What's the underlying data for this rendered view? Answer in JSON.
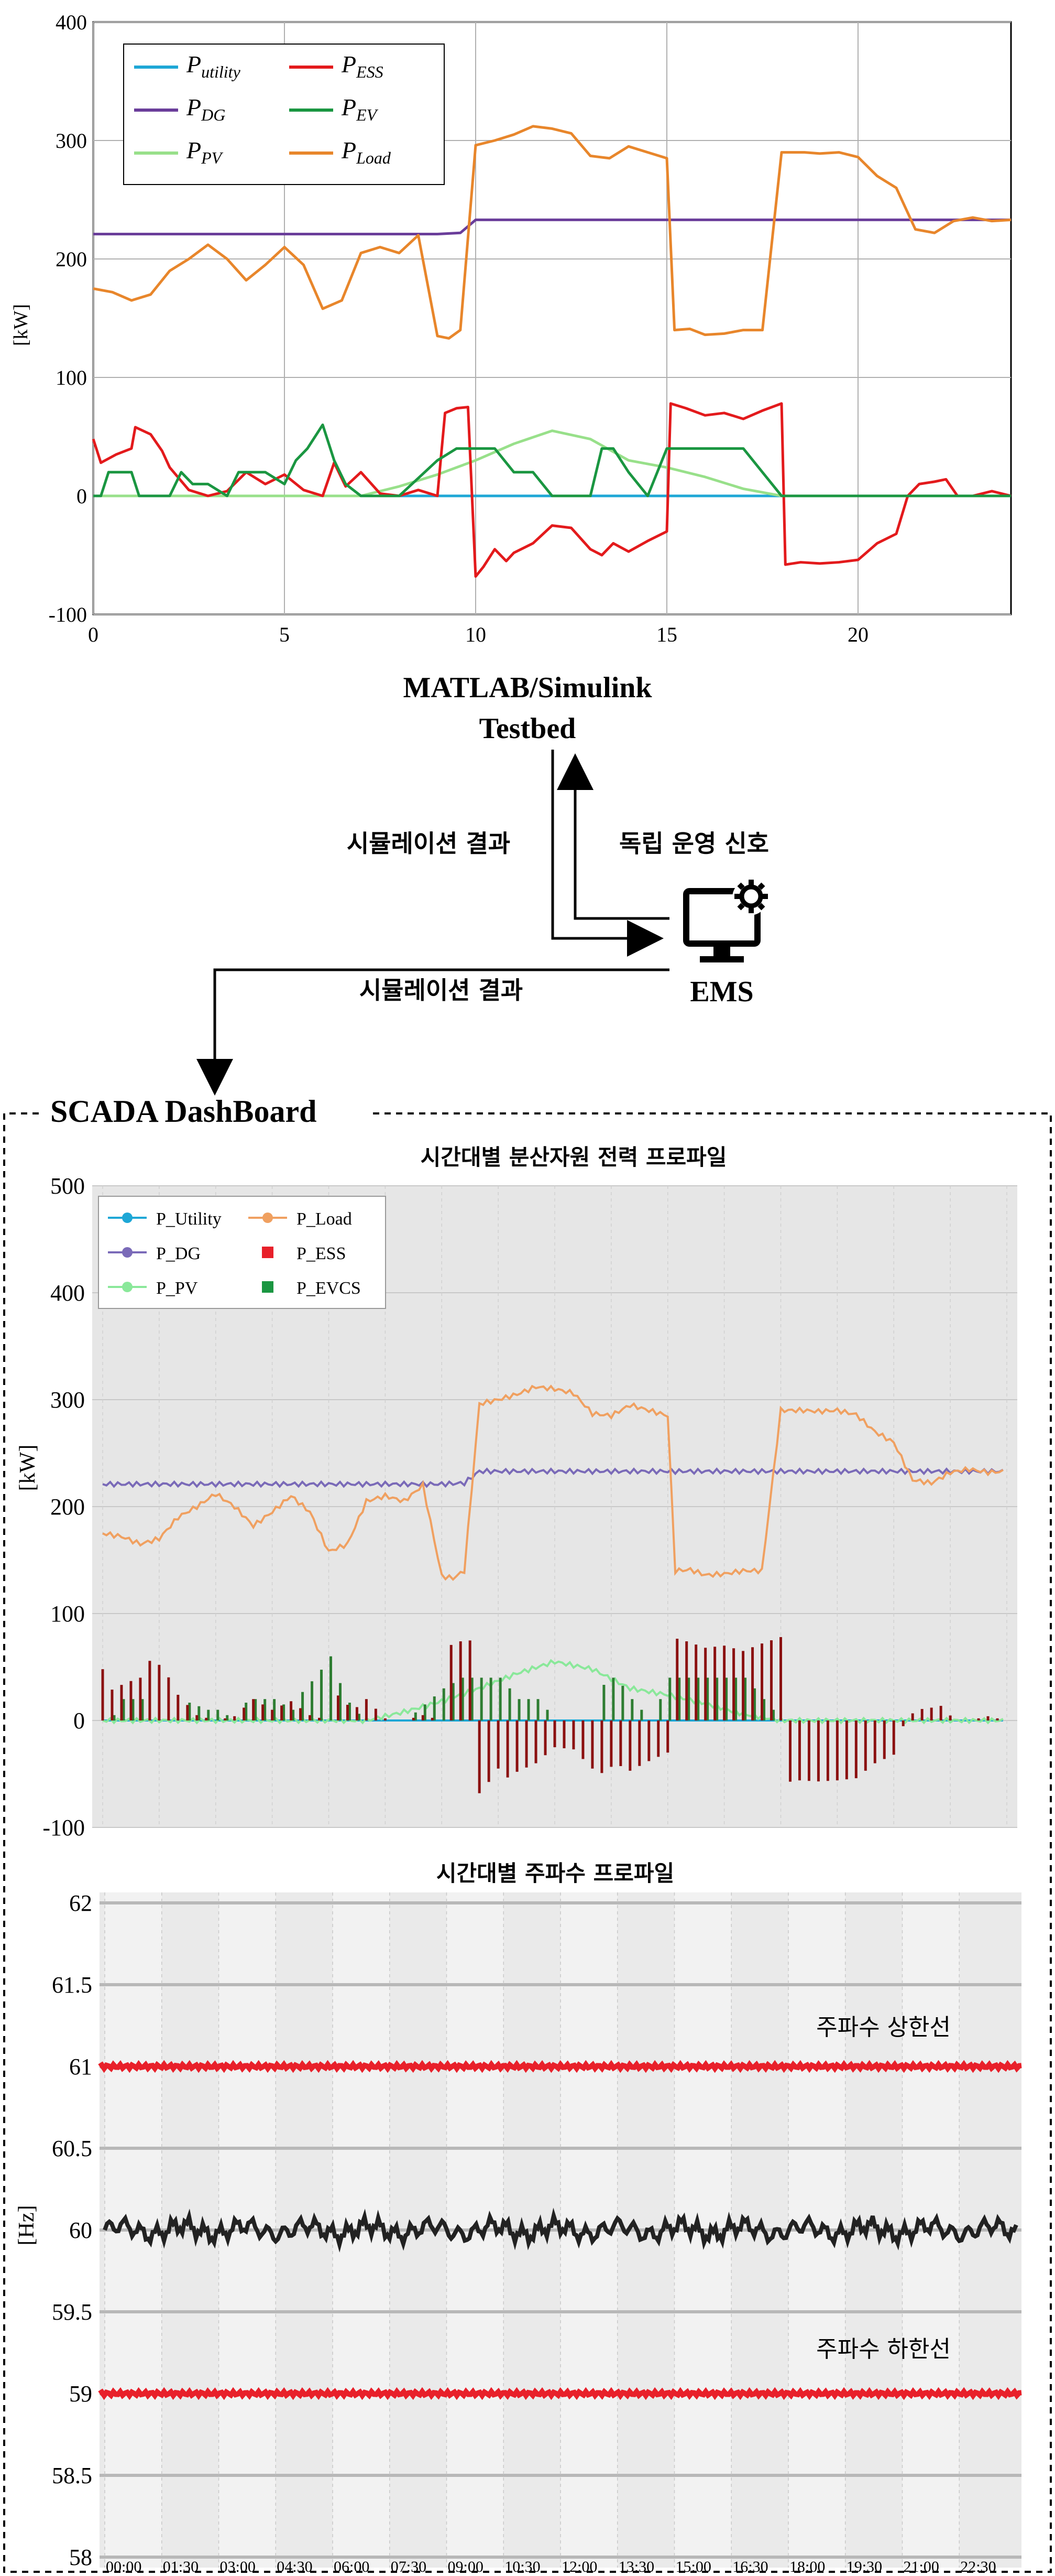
{
  "matlab_section": {
    "label_line1": "MATLAB/Simulink",
    "label_line2": "Testbed"
  },
  "flow": {
    "result_left": "시뮬레이션 결과",
    "signal_right": "독립 운영 신호",
    "ems_label": "EMS",
    "result_bottom": "시뮬레이션 결과"
  },
  "scada": {
    "title": "SCADA DashBoard"
  },
  "colors": {
    "utility": "#1ea7d6",
    "dg": "#6a3d9a",
    "pv": "#98e08a",
    "ess": "#e31a1c",
    "ev": "#1a9641",
    "load": "#e8862b",
    "dash_load": "#f0a060",
    "dash_dg": "#7a6ab8",
    "dash_pv": "#8ae89a",
    "dash_ess": "#8b1010",
    "dash_evcs": "#2e7d32",
    "limit": "#e8202a",
    "freq": "#222222"
  },
  "chart_data": [
    {
      "type": "line",
      "title": "",
      "xlabel": "",
      "ylabel": "[kW]",
      "xlim": [
        0,
        24
      ],
      "ylim": [
        -100,
        400
      ],
      "xticks": [
        "0",
        "5",
        "10",
        "15",
        "20"
      ],
      "yticks": [
        "-100",
        "0",
        "100",
        "200",
        "300",
        "400"
      ],
      "legend_location": "top-left",
      "grid": true,
      "series": [
        {
          "name": "P_utility",
          "label_main": "P",
          "label_sub": "utility",
          "color": "#1ea7d6",
          "x": [
            0,
            24
          ],
          "y": [
            0,
            0
          ]
        },
        {
          "name": "P_DG",
          "label_main": "P",
          "label_sub": "DG",
          "color": "#6a3d9a",
          "x": [
            0,
            9,
            9.6,
            10,
            24
          ],
          "y": [
            221,
            221,
            222,
            233,
            233
          ]
        },
        {
          "name": "P_PV",
          "label_main": "P",
          "label_sub": "PV",
          "color": "#98e08a",
          "x": [
            0,
            7,
            8,
            9,
            10,
            11,
            12,
            13,
            14,
            15,
            16,
            17,
            18,
            24
          ],
          "y": [
            0,
            0,
            8,
            18,
            30,
            44,
            55,
            48,
            30,
            24,
            16,
            6,
            0,
            0
          ]
        },
        {
          "name": "P_ESS",
          "label_main": "P",
          "label_sub": "ESS",
          "color": "#e31a1c",
          "x": [
            0,
            0.2,
            0.6,
            1,
            1.1,
            1.5,
            1.8,
            2,
            2.5,
            3,
            3.5,
            4,
            4.5,
            5,
            5.5,
            6,
            6.3,
            6.6,
            7,
            7.5,
            8,
            8.5,
            9,
            9.2,
            9.5,
            9.8,
            10,
            10.2,
            10.5,
            10.8,
            11,
            11.5,
            12,
            12.5,
            13,
            13.3,
            13.6,
            14,
            14.5,
            15,
            15.1,
            15.5,
            16,
            16.5,
            17,
            17.5,
            18,
            18.1,
            18.5,
            19,
            19.5,
            20,
            20.5,
            21,
            21.3,
            21.6,
            22,
            22.3,
            22.6,
            23,
            23.5,
            24
          ],
          "y": [
            48,
            28,
            35,
            40,
            58,
            52,
            38,
            24,
            5,
            0,
            4,
            20,
            10,
            18,
            5,
            0,
            28,
            8,
            20,
            2,
            0,
            5,
            0,
            70,
            74,
            75,
            -68,
            -60,
            -45,
            -55,
            -48,
            -40,
            -25,
            -27,
            -45,
            -50,
            -40,
            -47,
            -38,
            -30,
            78,
            74,
            68,
            70,
            65,
            72,
            78,
            -58,
            -56,
            -57,
            -56,
            -54,
            -40,
            -32,
            0,
            10,
            12,
            14,
            0,
            0,
            4,
            0
          ]
        },
        {
          "name": "P_EV",
          "label_main": "P",
          "label_sub": "EV",
          "color": "#1a9641",
          "x": [
            0,
            0.2,
            0.4,
            1,
            1.2,
            2,
            2.3,
            2.6,
            3,
            3.5,
            3.8,
            4.5,
            5,
            5.3,
            5.6,
            6,
            6.3,
            6.6,
            7,
            7.3,
            8,
            9,
            9.5,
            10,
            10.5,
            11,
            11.5,
            12,
            12.5,
            13,
            13.3,
            13.6,
            14,
            14.5,
            15,
            15.3,
            16,
            17,
            17.5,
            18,
            18.3,
            19,
            24
          ],
          "y": [
            0,
            0,
            20,
            20,
            0,
            0,
            20,
            10,
            10,
            0,
            20,
            20,
            10,
            30,
            40,
            60,
            30,
            10,
            0,
            0,
            0,
            30,
            40,
            40,
            40,
            20,
            20,
            0,
            0,
            0,
            40,
            40,
            20,
            0,
            40,
            40,
            40,
            40,
            20,
            0,
            0,
            0,
            0
          ]
        },
        {
          "name": "P_Load",
          "label_main": "P",
          "label_sub": "Load",
          "color": "#e8862b",
          "x": [
            0,
            0.5,
            1,
            1.5,
            2,
            2.5,
            3,
            3.5,
            4,
            4.5,
            5,
            5.5,
            6,
            6.5,
            7,
            7.5,
            8,
            8.5,
            9,
            9.3,
            9.6,
            10,
            10.5,
            11,
            11.5,
            12,
            12.5,
            13,
            13.5,
            14,
            14.5,
            15,
            15.2,
            15.6,
            16,
            16.5,
            17,
            17.5,
            18,
            18.3,
            18.6,
            19,
            19.5,
            20,
            20.5,
            21,
            21.5,
            22,
            22.5,
            23,
            23.5,
            24
          ],
          "y": [
            175,
            172,
            165,
            170,
            190,
            200,
            212,
            200,
            182,
            195,
            210,
            195,
            158,
            165,
            205,
            210,
            205,
            220,
            135,
            133,
            140,
            296,
            300,
            305,
            312,
            310,
            306,
            287,
            285,
            295,
            290,
            285,
            140,
            141,
            136,
            137,
            140,
            140,
            290,
            290,
            290,
            289,
            290,
            286,
            270,
            260,
            225,
            222,
            232,
            235,
            232,
            233
          ]
        }
      ]
    },
    {
      "type": "line",
      "title": "시간대별 분산자원 전력 프로파일",
      "xlabel": "",
      "ylabel": "[kW]",
      "ylim": [
        -100,
        500
      ],
      "yticks": [
        "-100",
        "0",
        "100",
        "200",
        "300",
        "400",
        "500"
      ],
      "legend_location": "top-left",
      "grid": true,
      "series": [
        {
          "name": "P_Utility",
          "marker": "circle-line",
          "color": "#1ea7d6"
        },
        {
          "name": "P_Load",
          "marker": "circle-line",
          "color": "#f0a060"
        },
        {
          "name": "P_DG",
          "marker": "circle-line",
          "color": "#7a6ab8"
        },
        {
          "name": "P_ESS",
          "marker": "square",
          "color": "#e8202a"
        },
        {
          "name": "P_PV",
          "marker": "circle-line",
          "color": "#8ae89a"
        },
        {
          "name": "P_EVCS",
          "marker": "square",
          "color": "#1a9641"
        }
      ]
    },
    {
      "type": "line",
      "title": "시간대별 주파수 프로파일",
      "xlabel": "",
      "ylabel": "[Hz]",
      "ylim": [
        58,
        62
      ],
      "yticks": [
        "58",
        "58.5",
        "59",
        "59.5",
        "60",
        "60.5",
        "61",
        "61.5",
        "62"
      ],
      "xticks": [
        "00:00",
        "01:30",
        "03:00",
        "04:30",
        "06:00",
        "07:30",
        "09:00",
        "10:30",
        "12:00",
        "13:30",
        "15:00",
        "16:30",
        "18:00",
        "19:30",
        "21:00",
        "22:30"
      ],
      "annotations": {
        "upper": "주파수 상한선",
        "lower": "주파수 하한선"
      },
      "upper_limit": 61,
      "lower_limit": 59,
      "frequency_nominal": 60
    }
  ]
}
